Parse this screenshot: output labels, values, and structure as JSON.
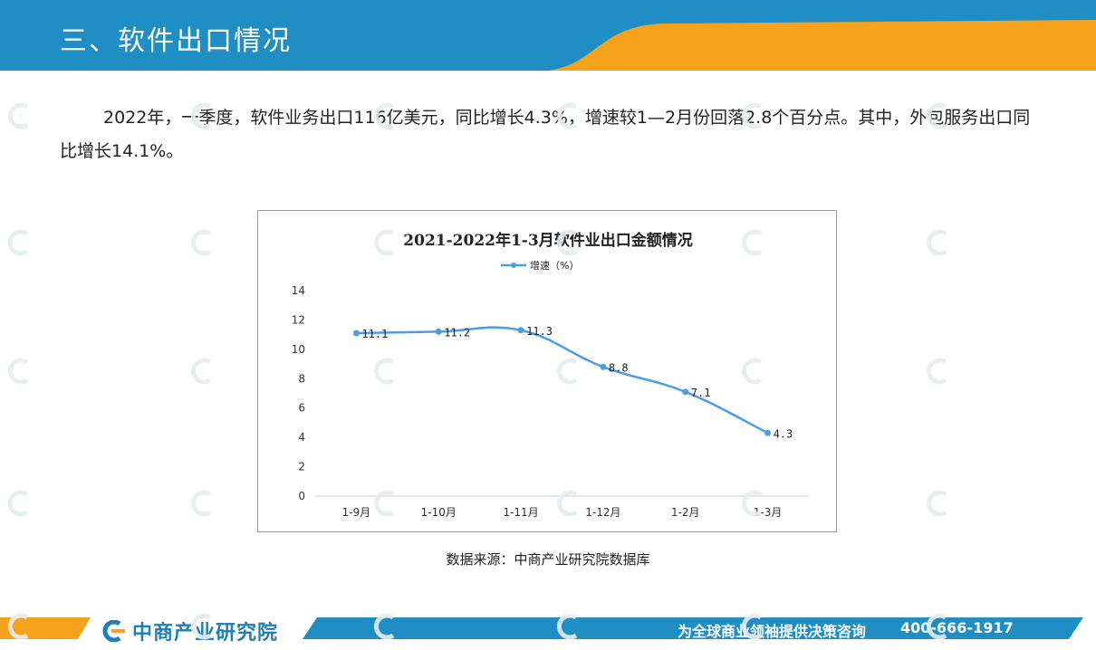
{
  "header": {
    "title": "三、软件出口情况"
  },
  "paragraph": "2022年，一季度，软件业务出口116亿美元，同比增长4.3%，增速较1—2月份回落2.8个百分点。其中，外包服务出口同比增长14.1%。",
  "chart_data": {
    "type": "line",
    "title": "2021-2022年1-3月软件业出口金额情况",
    "categories": [
      "1-9月",
      "1-10月",
      "1-11月",
      "1-12月",
      "1-2月",
      "1-3月"
    ],
    "series": [
      {
        "name": "增速（%）",
        "values": [
          11.1,
          11.2,
          11.3,
          8.8,
          7.1,
          4.3
        ]
      }
    ],
    "data_labels": [
      "11.1",
      "11.2",
      "11.3",
      "8.8",
      "7.1",
      "4.3"
    ],
    "y_ticks": [
      "14",
      "12",
      "10",
      "8",
      "6",
      "4",
      "2",
      "0"
    ],
    "ylim": [
      0,
      14
    ],
    "legend_position": "top-center",
    "grid": false,
    "line_color": "#4a9ee6"
  },
  "source": "数据来源：中商产业研究院数据库",
  "footer": {
    "logo_text": "中商产业研究院",
    "slogan": "为全球商业领袖提供决策咨询",
    "phone": "400-666-1917"
  },
  "colors": {
    "brand_blue": "#1f8ec4",
    "accent_orange": "#f7a21b"
  }
}
